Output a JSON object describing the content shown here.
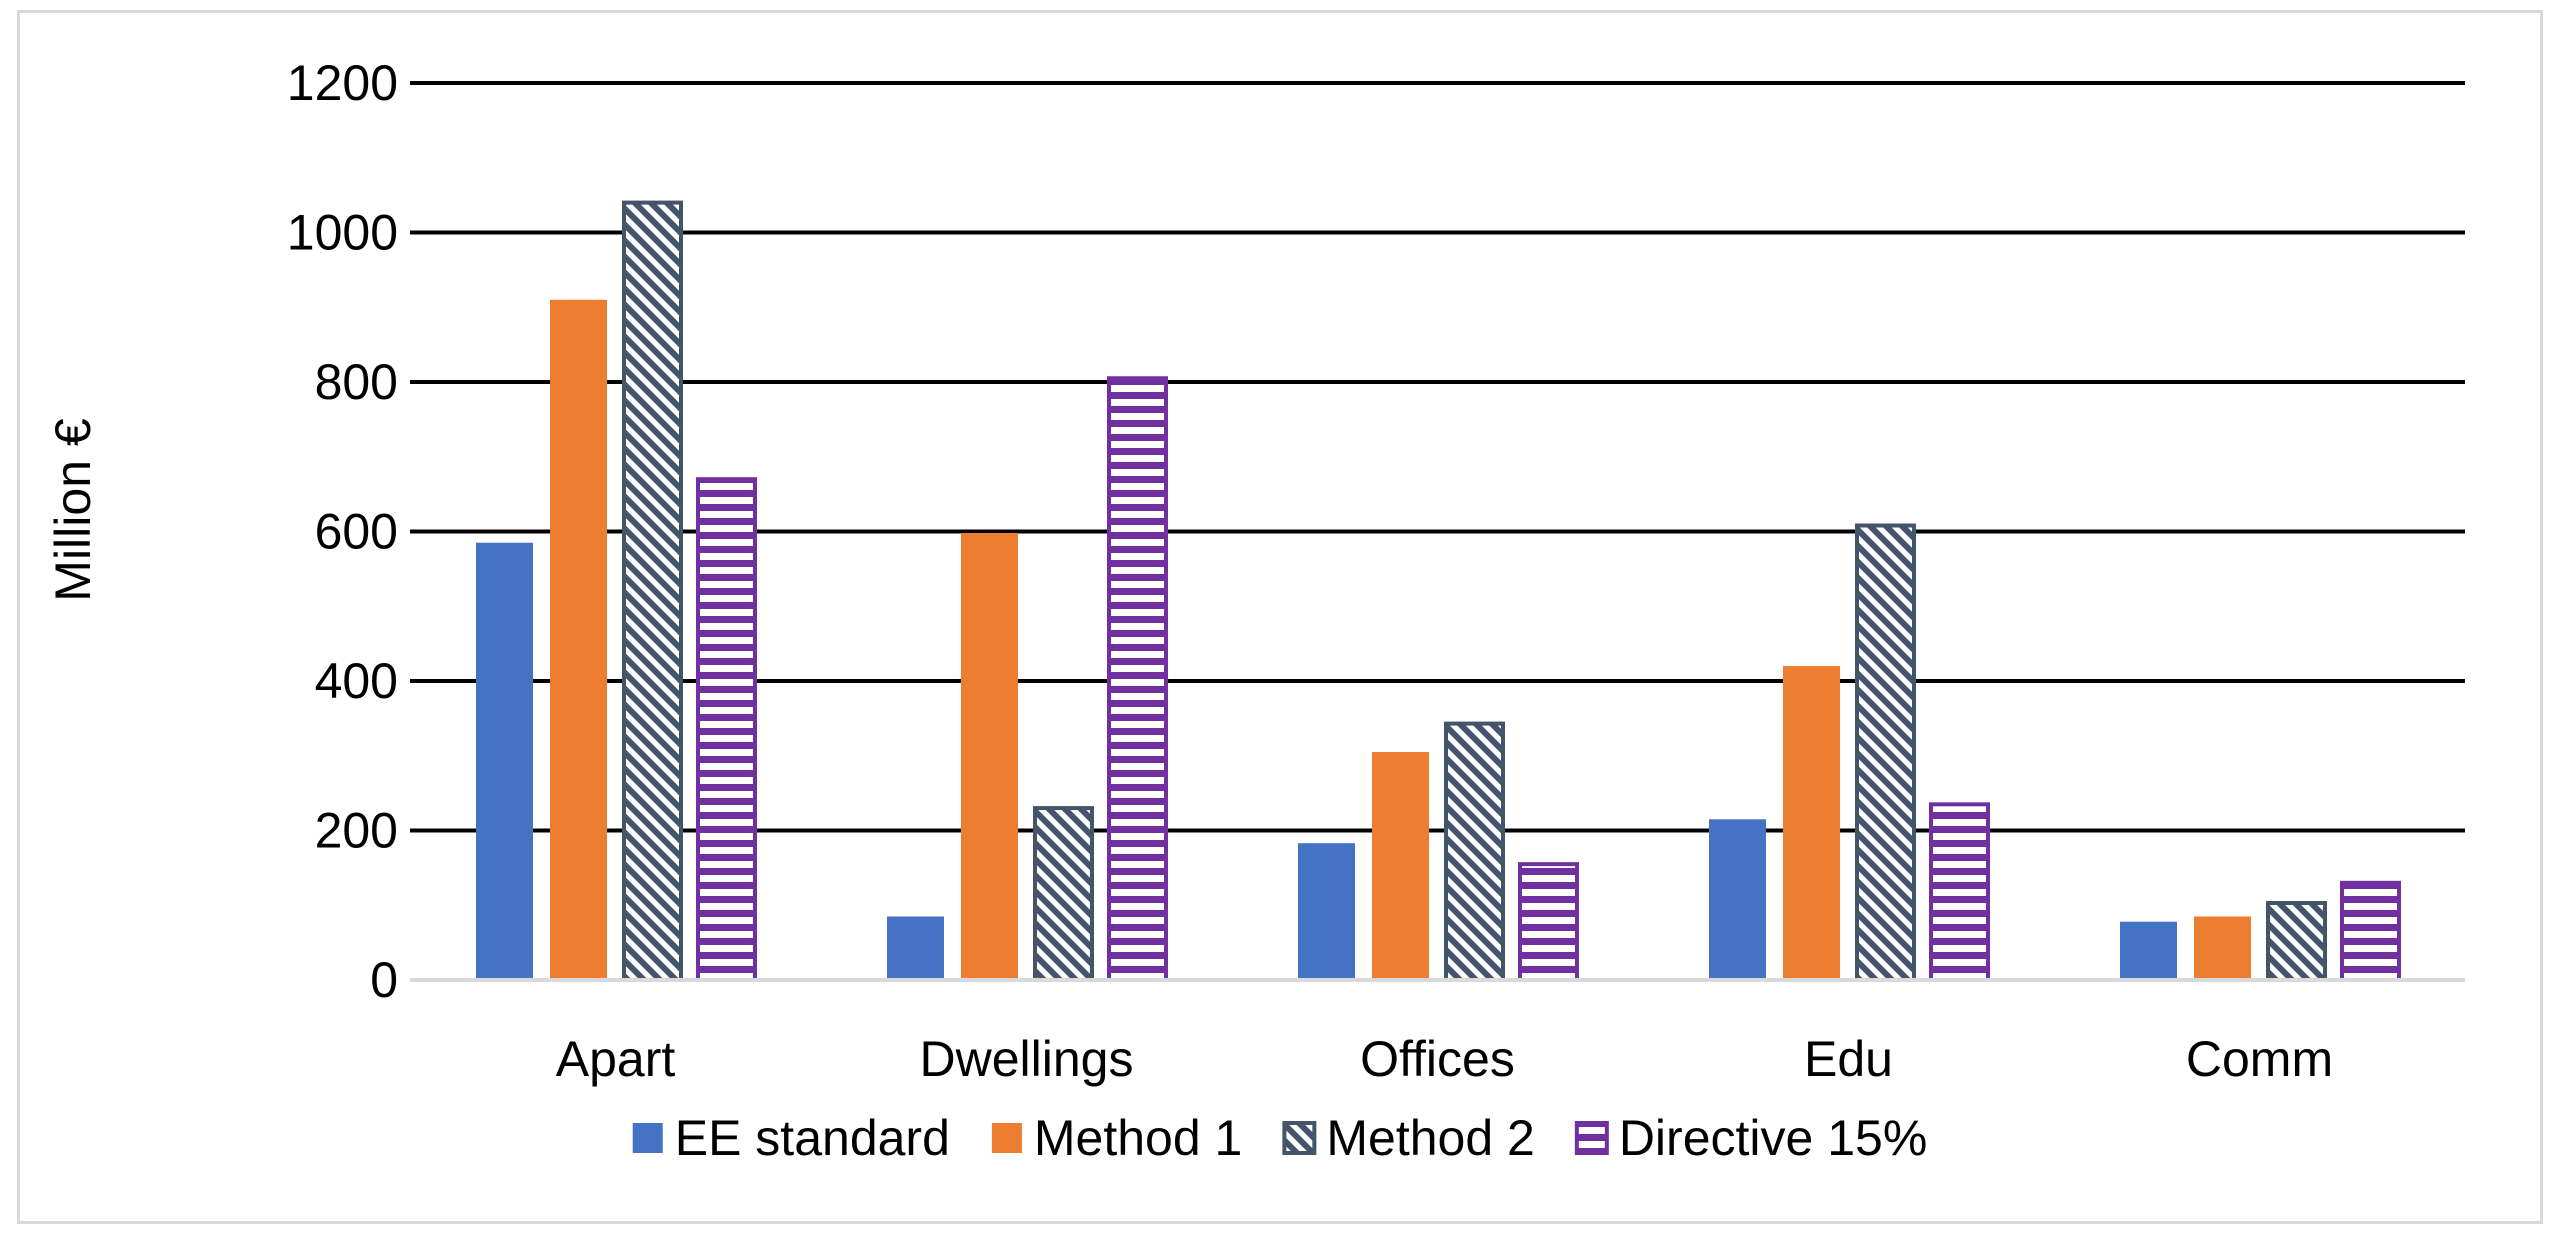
{
  "chart_data": {
    "type": "bar",
    "title": "",
    "xlabel": "",
    "ylabel": "Million €",
    "ylim": [
      0,
      1200
    ],
    "yticks": [
      0,
      200,
      400,
      600,
      800,
      1000,
      1200
    ],
    "grid": "horizontal major gridlines",
    "legend_position": "bottom",
    "categories": [
      "Apart",
      "Dwellings",
      "Offices",
      "Edu",
      "Comm"
    ],
    "series": [
      {
        "name": "EE standard",
        "color": "#4472c4",
        "fill": "solid",
        "values": [
          585,
          85,
          183,
          215,
          78
        ]
      },
      {
        "name": "Method 1",
        "color": "#ed7d31",
        "fill": "solid",
        "values": [
          910,
          598,
          305,
          420,
          85
        ]
      },
      {
        "name": "Method 2",
        "color": "#44546a",
        "fill": "diagonal-stripes",
        "values": [
          1040,
          230,
          343,
          608,
          103
        ]
      },
      {
        "name": "Directive 15%",
        "color": "#7030a0",
        "fill": "horizontal-stripes",
        "values": [
          670,
          805,
          155,
          235,
          130
        ]
      }
    ]
  }
}
